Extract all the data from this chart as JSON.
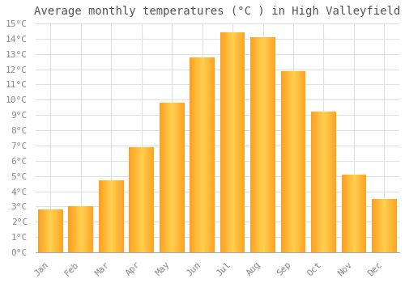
{
  "title": "Average monthly temperatures (°C ) in High Valleyfield",
  "months": [
    "Jan",
    "Feb",
    "Mar",
    "Apr",
    "May",
    "Jun",
    "Jul",
    "Aug",
    "Sep",
    "Oct",
    "Nov",
    "Dec"
  ],
  "temperatures": [
    2.8,
    3.0,
    4.7,
    6.9,
    9.8,
    12.8,
    14.4,
    14.1,
    11.9,
    9.2,
    5.1,
    3.5
  ],
  "bar_color_light": "#FFD050",
  "bar_color_dark": "#FFA020",
  "ylim": [
    0,
    15
  ],
  "ytick_step": 1,
  "background_color": "#ffffff",
  "grid_color": "#e0e0e0",
  "title_fontsize": 10,
  "tick_fontsize": 8,
  "font_family": "monospace"
}
